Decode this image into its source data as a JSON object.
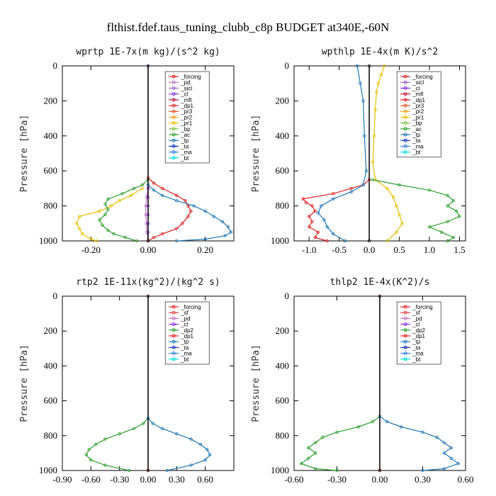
{
  "figure_title": "flthist.fdef.taus_tuning_clubb_c8p  BUDGET at340E,-60N",
  "chart_data": [
    {
      "type": "line",
      "title": "wprtp   1E-7x(m kg)/(s^2 kg)",
      "ylabel": "Pressure [hPa]",
      "ylim": [
        1000,
        0
      ],
      "xlim": [
        -0.3,
        0.3
      ],
      "xticks": [
        "-0.20",
        "0.00",
        "0.20"
      ],
      "xtick_values": [
        -0.2,
        0.0,
        0.2
      ],
      "yticks": [
        "0",
        "200",
        "400",
        "600",
        "800",
        "1000"
      ],
      "ytick_values": [
        0,
        200,
        400,
        600,
        800,
        1000
      ],
      "legend": [
        "_forcing",
        "_pd",
        "_sicl",
        "_cl",
        "_mfl",
        "_dp1",
        "_pr3",
        "_pr2",
        "_pr1",
        "_bp",
        "_ac",
        "_tp",
        "_ta",
        "_ma",
        "_bt"
      ],
      "series": [
        {
          "name": "_pd",
          "color": "#c070c0",
          "y": [
            0,
            650,
            700,
            750,
            800,
            850,
            900,
            950,
            1000
          ],
          "x": [
            0,
            0,
            0,
            -0.005,
            -0.008,
            -0.008,
            -0.006,
            -0.004,
            0
          ]
        },
        {
          "name": "_cl",
          "color": "#8a2be2",
          "y": [
            0,
            650,
            700,
            750,
            800,
            850,
            900,
            950,
            1000
          ],
          "x": [
            0,
            0,
            0,
            0,
            0,
            0,
            0,
            0,
            0
          ]
        },
        {
          "name": "_dp1",
          "color": "#e02020",
          "y": [
            640,
            670,
            700,
            740,
            770,
            800,
            830,
            860,
            900,
            930,
            960,
            980,
            1000
          ],
          "x": [
            0,
            0.02,
            0.05,
            0.1,
            0.13,
            0.14,
            0.15,
            0.14,
            0.12,
            0.1,
            0.05,
            0.02,
            0
          ]
        },
        {
          "name": "_pr1",
          "color": "#e8c000",
          "y": [
            700,
            740,
            770,
            800,
            830,
            860,
            900,
            930,
            960,
            990,
            1000
          ],
          "x": [
            -0.02,
            -0.06,
            -0.1,
            -0.13,
            -0.17,
            -0.24,
            -0.25,
            -0.24,
            -0.23,
            -0.2,
            -0.18
          ]
        },
        {
          "name": "_ac",
          "color": "#2ca02c",
          "y": [
            650,
            680,
            700,
            730,
            760,
            790,
            820,
            850,
            880,
            910,
            940,
            960,
            980,
            1000
          ],
          "x": [
            0,
            -0.02,
            -0.05,
            -0.09,
            -0.14,
            -0.15,
            -0.14,
            -0.15,
            -0.17,
            -0.16,
            -0.14,
            -0.12,
            -0.08,
            -0.04
          ]
        },
        {
          "name": "_tp",
          "color": "#1f77b4",
          "y": [
            680,
            710,
            740,
            770,
            800,
            830,
            860,
            890,
            920,
            950,
            970,
            990,
            1000
          ],
          "x": [
            0,
            0.02,
            0.05,
            0.1,
            0.16,
            0.2,
            0.23,
            0.26,
            0.28,
            0.29,
            0.27,
            0.2,
            0.1
          ]
        },
        {
          "name": "_bt",
          "color": "#111111",
          "y": [
            0,
            1000
          ],
          "x": [
            0,
            0
          ]
        }
      ]
    },
    {
      "type": "line",
      "title": "wpthlp   1E-4x(m K)/s^2",
      "ylabel": "Pressure [hPa]",
      "ylim": [
        1000,
        0
      ],
      "xlim": [
        -1.25,
        1.6
      ],
      "xticks": [
        "-1.0",
        "-0.5",
        "0.0",
        "0.5",
        "1.0",
        "1.5"
      ],
      "xtick_values": [
        -1.0,
        -0.5,
        0.0,
        0.5,
        1.0,
        1.5
      ],
      "yticks": [
        "0",
        "200",
        "400",
        "600",
        "800",
        "1000"
      ],
      "ytick_values": [
        0,
        200,
        400,
        600,
        800,
        1000
      ],
      "legend": [
        "_forcing",
        "_sicl",
        "_cl",
        "_mfl",
        "_dp1",
        "_pr3",
        "_pr2",
        "_pr1",
        "_bp",
        "_ac",
        "_tp",
        "_ta",
        "_ma",
        "_bt"
      ],
      "series": [
        {
          "name": "_dp1",
          "color": "#e02020",
          "y": [
            650,
            680,
            700,
            730,
            760,
            780,
            800,
            830,
            860,
            890,
            920,
            950,
            980,
            1000
          ],
          "x": [
            0,
            -0.1,
            -0.3,
            -0.6,
            -1.1,
            -1.05,
            -0.95,
            -0.9,
            -1.0,
            -0.95,
            -1.0,
            -0.85,
            -0.9,
            -0.7
          ]
        },
        {
          "name": "_pr1",
          "color": "#e8c000",
          "y": [
            0,
            50,
            100,
            150,
            250,
            400,
            550,
            650,
            700,
            750,
            800,
            850,
            900,
            950,
            1000
          ],
          "x": [
            0.25,
            0.2,
            0.15,
            0.12,
            0.1,
            0.08,
            0.06,
            0.1,
            0.3,
            0.4,
            0.45,
            0.5,
            0.55,
            0.45,
            0.3
          ]
        },
        {
          "name": "_ac",
          "color": "#2ca02c",
          "y": [
            650,
            680,
            710,
            740,
            770,
            800,
            830,
            860,
            890,
            920,
            950,
            980,
            1000
          ],
          "x": [
            0.05,
            0.5,
            1.0,
            1.3,
            1.4,
            1.3,
            1.45,
            1.5,
            1.3,
            1.0,
            1.2,
            1.4,
            1.3
          ]
        },
        {
          "name": "_tp",
          "color": "#1f77b4",
          "y": [
            0,
            100,
            200,
            400,
            600,
            680,
            720,
            760,
            800,
            840,
            880,
            920,
            960,
            1000
          ],
          "x": [
            -0.2,
            -0.15,
            -0.1,
            -0.08,
            -0.05,
            -0.1,
            -0.3,
            -0.6,
            -0.8,
            -0.85,
            -0.75,
            -0.7,
            -0.6,
            -0.4
          ]
        },
        {
          "name": "_bt",
          "color": "#111111",
          "y": [
            0,
            1000
          ],
          "x": [
            0,
            0
          ]
        }
      ]
    },
    {
      "type": "line",
      "title": "rtp2   1E-11x(kg^2)/(kg^2 s)",
      "ylabel": "Pressure [hPa]",
      "ylim": [
        1000,
        0
      ],
      "xlim": [
        -0.9,
        0.9
      ],
      "xticks": [
        "-0.90",
        "-0.60",
        "-0.30",
        "0.00",
        "0.30",
        "0.60"
      ],
      "xtick_values": [
        -0.9,
        -0.6,
        -0.3,
        0.0,
        0.3,
        0.6
      ],
      "yticks": [
        "0",
        "200",
        "400",
        "600",
        "800",
        "1000"
      ],
      "ytick_values": [
        0,
        200,
        400,
        600,
        800,
        1000
      ],
      "legend": [
        "_forcing",
        "_sf",
        "_pd",
        "_cl",
        "_dp2",
        "_dp1",
        "_tp",
        "_ta",
        "_ma",
        "_bt"
      ],
      "series": [
        {
          "name": "_dp1",
          "color": "#2ca02c",
          "y": [
            700,
            730,
            760,
            790,
            820,
            850,
            880,
            910,
            940,
            970,
            1000
          ],
          "x": [
            0,
            -0.05,
            -0.15,
            -0.3,
            -0.45,
            -0.55,
            -0.62,
            -0.65,
            -0.6,
            -0.45,
            -0.2
          ]
        },
        {
          "name": "_tp",
          "color": "#1f77b4",
          "y": [
            700,
            730,
            760,
            790,
            820,
            850,
            880,
            910,
            940,
            970,
            1000
          ],
          "x": [
            0,
            0.05,
            0.15,
            0.3,
            0.45,
            0.55,
            0.62,
            0.65,
            0.6,
            0.45,
            0.2
          ]
        },
        {
          "name": "_forcing",
          "color": "#e02020",
          "y": [
            0,
            1000
          ],
          "x": [
            0,
            0
          ]
        },
        {
          "name": "_bt",
          "color": "#111111",
          "y": [
            0,
            1000
          ],
          "x": [
            0,
            0
          ]
        }
      ]
    },
    {
      "type": "line",
      "title": "thlp2   1E-4x(K^2)/s",
      "ylabel": "Pressure [hPa]",
      "ylim": [
        1000,
        0
      ],
      "xlim": [
        -0.6,
        0.6
      ],
      "xticks": [
        "-0.60",
        "-0.30",
        "0.00",
        "0.30",
        "0.60"
      ],
      "xtick_values": [
        -0.6,
        -0.3,
        0.0,
        0.3,
        0.6
      ],
      "yticks": [
        "0",
        "200",
        "400",
        "600",
        "800",
        "1000"
      ],
      "ytick_values": [
        0,
        200,
        400,
        600,
        800,
        1000
      ],
      "legend": [
        "_forcing",
        "_sf",
        "_pd",
        "_cl",
        "_dp2",
        "_dp1",
        "_tp",
        "_ta",
        "_ma",
        "_bt"
      ],
      "series": [
        {
          "name": "_dp1",
          "color": "#2ca02c",
          "y": [
            690,
            720,
            750,
            780,
            810,
            840,
            870,
            900,
            930,
            960,
            990,
            1000
          ],
          "x": [
            0,
            -0.05,
            -0.15,
            -0.3,
            -0.4,
            -0.45,
            -0.5,
            -0.45,
            -0.5,
            -0.55,
            -0.45,
            -0.3
          ]
        },
        {
          "name": "_tp",
          "color": "#1f77b4",
          "y": [
            690,
            720,
            750,
            780,
            810,
            840,
            870,
            900,
            930,
            960,
            990,
            1000
          ],
          "x": [
            0,
            0.05,
            0.15,
            0.3,
            0.4,
            0.45,
            0.5,
            0.45,
            0.5,
            0.55,
            0.45,
            0.3
          ]
        },
        {
          "name": "_forcing",
          "color": "#e02020",
          "y": [
            0,
            1000
          ],
          "x": [
            0,
            0
          ]
        },
        {
          "name": "_bt",
          "color": "#111111",
          "y": [
            0,
            1000
          ],
          "x": [
            0,
            0
          ]
        }
      ]
    }
  ],
  "legend_colors": {
    "_forcing": "#e02020",
    "_sf": "#e04040",
    "_pd": "#c070c0",
    "_sicl": "#9467bd",
    "_cl": "#8a2be2",
    "_mfl": "#c01040",
    "_dp1": "#e02020",
    "_dp2": "#2ca02c",
    "_pr3": "#e05020",
    "_pr2": "#f0a020",
    "_pr1": "#e8c000",
    "_bp": "#7fbf3f",
    "_ac": "#2ca02c",
    "_tp": "#1f77b4",
    "_ta": "#1030c0",
    "_ma": "#3080e0",
    "_bt": "#00e0e0"
  }
}
